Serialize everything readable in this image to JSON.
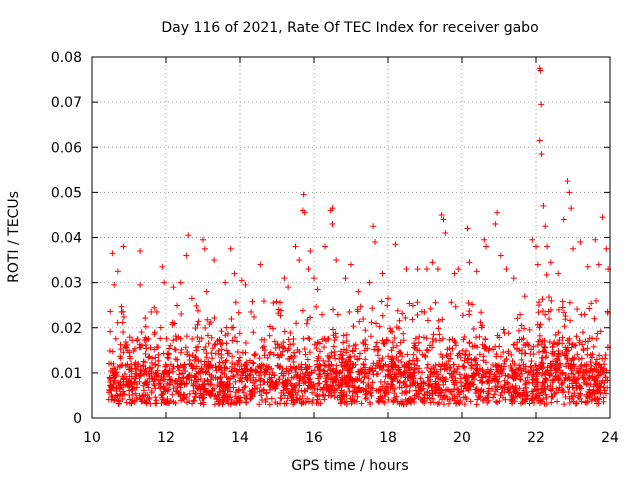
{
  "chart_data": {
    "type": "scatter",
    "title": "Day 116 of 2021, Rate Of TEC Index for receiver gabo",
    "xlabel": "GPS time / hours",
    "ylabel": "ROTI / TECUs",
    "xlim": [
      10,
      24
    ],
    "ylim": [
      0,
      0.08
    ],
    "x_ticks": [
      "10",
      "12",
      "14",
      "16",
      "18",
      "20",
      "22",
      "24"
    ],
    "y_ticks": [
      "0",
      "0.01",
      "0.02",
      "0.03",
      "0.04",
      "0.05",
      "0.06",
      "0.07",
      "0.08"
    ],
    "grid": true,
    "marker": "+",
    "color": "#ff0000",
    "series": [
      {
        "name": "ROTI",
        "points": [
          [
            10.55,
            0.0365
          ],
          [
            10.6,
            0.0295
          ],
          [
            10.7,
            0.0325
          ],
          [
            10.85,
            0.038
          ],
          [
            10.8,
            0.0235
          ],
          [
            11.3,
            0.037
          ],
          [
            11.3,
            0.0295
          ],
          [
            11.6,
            0.0235
          ],
          [
            11.7,
            0.019
          ],
          [
            11.9,
            0.0335
          ],
          [
            11.95,
            0.03
          ],
          [
            12.2,
            0.029
          ],
          [
            12.4,
            0.03
          ],
          [
            12.6,
            0.0405
          ],
          [
            12.55,
            0.036
          ],
          [
            12.7,
            0.0265
          ],
          [
            13.0,
            0.0395
          ],
          [
            13.05,
            0.0375
          ],
          [
            13.1,
            0.028
          ],
          [
            13.3,
            0.035
          ],
          [
            13.6,
            0.03
          ],
          [
            13.75,
            0.0375
          ],
          [
            13.85,
            0.032
          ],
          [
            14.05,
            0.0305
          ],
          [
            14.15,
            0.0295
          ],
          [
            14.3,
            0.0235
          ],
          [
            14.55,
            0.034
          ],
          [
            14.9,
            0.0255
          ],
          [
            15.2,
            0.031
          ],
          [
            15.3,
            0.029
          ],
          [
            15.5,
            0.038
          ],
          [
            15.6,
            0.035
          ],
          [
            15.7,
            0.046
          ],
          [
            15.72,
            0.0495
          ],
          [
            15.75,
            0.0455
          ],
          [
            15.85,
            0.033
          ],
          [
            15.9,
            0.037
          ],
          [
            16.0,
            0.031
          ],
          [
            16.1,
            0.0285
          ],
          [
            16.3,
            0.038
          ],
          [
            16.45,
            0.046
          ],
          [
            16.5,
            0.0465
          ],
          [
            16.5,
            0.043
          ],
          [
            16.6,
            0.035
          ],
          [
            16.85,
            0.031
          ],
          [
            17.0,
            0.034
          ],
          [
            17.2,
            0.028
          ],
          [
            17.5,
            0.03
          ],
          [
            17.6,
            0.0425
          ],
          [
            17.65,
            0.039
          ],
          [
            17.85,
            0.032
          ],
          [
            18.0,
            0.0265
          ],
          [
            18.2,
            0.0385
          ],
          [
            18.5,
            0.033
          ],
          [
            18.8,
            0.033
          ],
          [
            19.05,
            0.033
          ],
          [
            19.2,
            0.0345
          ],
          [
            19.35,
            0.033
          ],
          [
            19.45,
            0.045
          ],
          [
            19.5,
            0.044
          ],
          [
            19.55,
            0.041
          ],
          [
            19.8,
            0.032
          ],
          [
            19.9,
            0.033
          ],
          [
            20.15,
            0.042
          ],
          [
            20.2,
            0.0345
          ],
          [
            20.4,
            0.0325
          ],
          [
            20.6,
            0.0395
          ],
          [
            20.65,
            0.038
          ],
          [
            20.9,
            0.043
          ],
          [
            20.95,
            0.0455
          ],
          [
            21.05,
            0.036
          ],
          [
            21.2,
            0.033
          ],
          [
            21.4,
            0.031
          ],
          [
            21.7,
            0.027
          ],
          [
            21.9,
            0.0395
          ],
          [
            22.0,
            0.038
          ],
          [
            22.05,
            0.034
          ],
          [
            22.1,
            0.0775
          ],
          [
            22.12,
            0.077
          ],
          [
            22.14,
            0.0695
          ],
          [
            22.1,
            0.0615
          ],
          [
            22.15,
            0.0585
          ],
          [
            22.2,
            0.047
          ],
          [
            22.25,
            0.0425
          ],
          [
            22.3,
            0.038
          ],
          [
            22.4,
            0.0345
          ],
          [
            22.6,
            0.032
          ],
          [
            22.75,
            0.044
          ],
          [
            22.85,
            0.0525
          ],
          [
            22.9,
            0.05
          ],
          [
            22.95,
            0.0465
          ],
          [
            23.0,
            0.0375
          ],
          [
            23.2,
            0.039
          ],
          [
            23.4,
            0.0335
          ],
          [
            23.6,
            0.0395
          ],
          [
            23.7,
            0.034
          ],
          [
            23.8,
            0.0445
          ],
          [
            23.9,
            0.0375
          ],
          [
            23.95,
            0.033
          ]
        ]
      }
    ]
  }
}
